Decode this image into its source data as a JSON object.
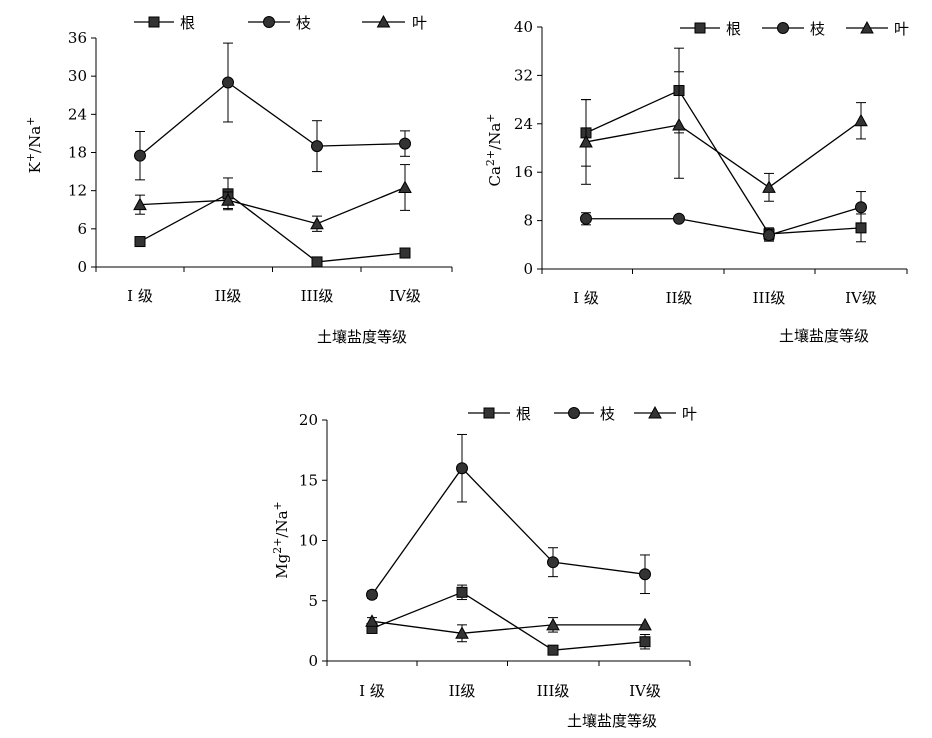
{
  "legend_labels": [
    "根",
    "枝",
    "叶"
  ],
  "markers": [
    "square",
    "circle",
    "triangle"
  ],
  "chart_data": [
    {
      "type": "line",
      "ylabel_base": "K",
      "ylabel_sup": "+",
      "ylabel_tail": "/Na",
      "ylabel_tail_sup": "+",
      "xlabel": "土壤盐度等级",
      "categories": [
        "I 级",
        "II级",
        "III级",
        "IV级"
      ],
      "ylim": [
        0,
        36
      ],
      "yticks": [
        0,
        6,
        12,
        18,
        24,
        30,
        36
      ],
      "legend_position": "top",
      "series": [
        {
          "name": "根",
          "marker": "square",
          "values": [
            4.0,
            11.5,
            0.8,
            2.2
          ],
          "errors": [
            0.3,
            2.5,
            0.3,
            0.5
          ]
        },
        {
          "name": "枝",
          "marker": "circle",
          "values": [
            17.5,
            29.0,
            19.0,
            19.4
          ],
          "errors": [
            3.8,
            6.2,
            4.0,
            2.0
          ]
        },
        {
          "name": "叶",
          "marker": "triangle",
          "values": [
            9.8,
            10.5,
            6.8,
            12.5
          ],
          "errors": [
            1.5,
            1.3,
            1.2,
            3.6
          ]
        }
      ]
    },
    {
      "type": "line",
      "ylabel_base": "Ca",
      "ylabel_sup": "2+",
      "ylabel_tail": "/Na",
      "ylabel_tail_sup": "+",
      "xlabel": "土壤盐度等级",
      "categories": [
        "I 级",
        "II级",
        "III级",
        "IV级"
      ],
      "ylim": [
        0,
        40
      ],
      "yticks": [
        0,
        8,
        16,
        24,
        32,
        40
      ],
      "legend_position": "top-right",
      "series": [
        {
          "name": "根",
          "marker": "square",
          "values": [
            22.5,
            29.5,
            5.8,
            6.8
          ],
          "errors": [
            5.5,
            7.0,
            1.0,
            2.3
          ]
        },
        {
          "name": "枝",
          "marker": "circle",
          "values": [
            8.3,
            8.3,
            5.6,
            10.2
          ],
          "errors": [
            1.0,
            0.0,
            1.0,
            2.6
          ]
        },
        {
          "name": "叶",
          "marker": "triangle",
          "values": [
            21.0,
            23.8,
            13.5,
            24.5
          ],
          "errors": [
            7.0,
            8.8,
            2.3,
            3.0
          ]
        }
      ]
    },
    {
      "type": "line",
      "ylabel_base": "Mg",
      "ylabel_sup": "2+",
      "ylabel_tail": "/Na",
      "ylabel_tail_sup": "+",
      "xlabel": "土壤盐度等级",
      "categories": [
        "I 级",
        "II级",
        "III级",
        "IV级"
      ],
      "ylim": [
        0,
        20
      ],
      "yticks": [
        0,
        5,
        10,
        15,
        20
      ],
      "legend_position": "top",
      "series": [
        {
          "name": "根",
          "marker": "square",
          "values": [
            2.7,
            5.7,
            0.9,
            1.6
          ],
          "errors": [
            0.3,
            0.6,
            0.2,
            0.6
          ]
        },
        {
          "name": "枝",
          "marker": "circle",
          "values": [
            5.5,
            16.0,
            8.2,
            7.2
          ],
          "errors": [
            0.3,
            2.8,
            1.2,
            1.6
          ]
        },
        {
          "name": "叶",
          "marker": "triangle",
          "values": [
            3.3,
            2.3,
            3.0,
            3.0
          ],
          "errors": [
            0.3,
            0.7,
            0.6,
            0.0
          ]
        }
      ]
    }
  ]
}
